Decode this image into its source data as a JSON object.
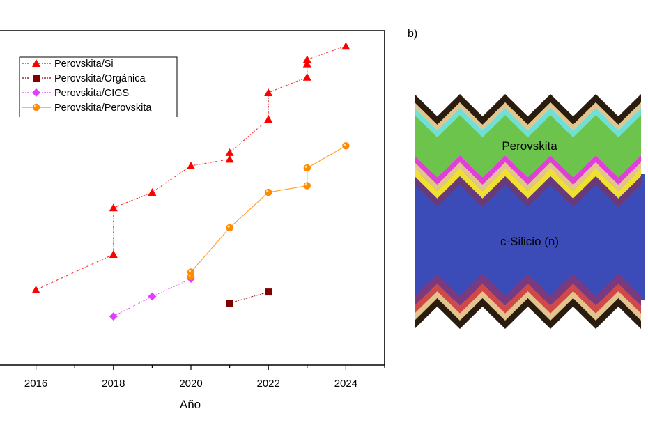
{
  "chart_data": {
    "type": "line",
    "title": "",
    "xlabel": "Año",
    "ylabel": "",
    "y_axis_visible": false,
    "y_units_note": "y-axis not visible (cropped); values estimated in efficiency (%) units",
    "xlim": [
      2015,
      2025
    ],
    "ylim_estimate": [
      20.2,
      35.3
    ],
    "x_ticks": [
      2016,
      2018,
      2020,
      2022,
      2024
    ],
    "x_tick_labels": [
      "2016",
      "2018",
      "2020",
      "2022",
      "2024"
    ],
    "x_minor_ticks": [
      2017,
      2019,
      2021,
      2023,
      2025
    ],
    "grid": false,
    "legend_position": "top-left",
    "series": [
      {
        "name": "Perovskita/Si",
        "color": "#ff0000",
        "marker": "triangle",
        "line_style": "dash-dot",
        "points": [
          [
            2016,
            23.6
          ],
          [
            2018,
            25.2
          ],
          [
            2018,
            27.3
          ],
          [
            2019,
            28.0
          ],
          [
            2020,
            29.2
          ],
          [
            2021,
            29.5
          ],
          [
            2021,
            29.8
          ],
          [
            2022,
            31.3
          ],
          [
            2022,
            32.5
          ],
          [
            2023,
            33.2
          ],
          [
            2023,
            33.8
          ],
          [
            2023,
            34.0
          ],
          [
            2024,
            34.6
          ]
        ]
      },
      {
        "name": "Perovskita/Orgánica",
        "color": "#800000",
        "marker": "square",
        "line_style": "dash-dot",
        "points": [
          [
            2021,
            23.0
          ],
          [
            2022,
            23.5
          ]
        ]
      },
      {
        "name": "Perovskita/CIGS",
        "color": "#e040fb",
        "marker": "diamond",
        "line_style": "dash-dot",
        "points": [
          [
            2018,
            22.4
          ],
          [
            2019,
            23.3
          ],
          [
            2020,
            24.1
          ]
        ]
      },
      {
        "name": "Perovskita/Perovskita",
        "color": "#ff8c00",
        "marker": "circle",
        "line_style": "solid",
        "points": [
          [
            2020,
            24.2
          ],
          [
            2020,
            24.4
          ],
          [
            2021,
            26.4
          ],
          [
            2022,
            28.0
          ],
          [
            2023,
            28.3
          ],
          [
            2023,
            29.1
          ],
          [
            2024,
            30.1
          ]
        ]
      }
    ]
  },
  "diagram": {
    "panel_label": "b)",
    "labels": {
      "perovskite": "Perovskita",
      "silicon": "c-Silicio (n)"
    },
    "top_layers": [
      {
        "name": "electrode-top",
        "color": "#2a1d10"
      },
      {
        "name": "buffer-top",
        "color": "#e2c48c"
      },
      {
        "name": "transport-top",
        "color": "#6fe0d8"
      },
      {
        "name": "perovskite",
        "color": "#6cc44c"
      },
      {
        "name": "transport-mid",
        "color": "#e040d8"
      },
      {
        "name": "recombination-1",
        "color": "#e2c48c"
      },
      {
        "name": "recombination-2",
        "color": "#f0e030"
      },
      {
        "name": "passivation-top",
        "color": "#6a3a78"
      }
    ],
    "silicon_color": "#3b4bb8",
    "bottom_layers": [
      {
        "name": "passivation-bottom",
        "color": "#7a3a80"
      },
      {
        "name": "doped-bottom",
        "color": "#d04848"
      },
      {
        "name": "buffer-bottom",
        "color": "#e2c48c"
      },
      {
        "name": "electrode-bottom",
        "color": "#2a1d10"
      }
    ]
  }
}
